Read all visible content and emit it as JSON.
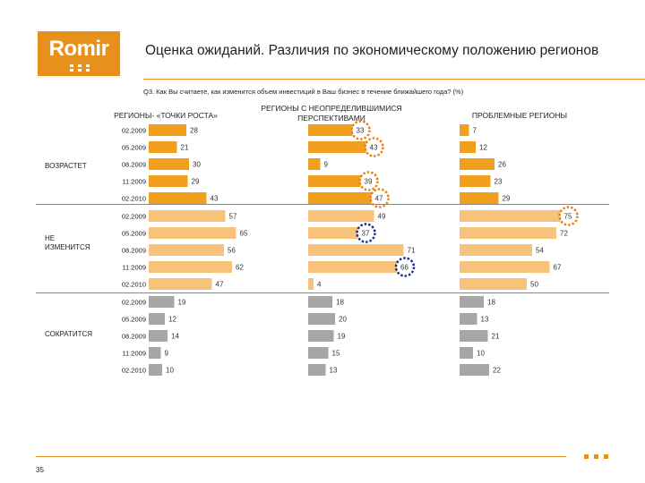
{
  "logo": {
    "text": "Romir"
  },
  "title": "Оценка ожиданий. Различия по экономическому положению регионов",
  "question": "Q3. Как Вы считаете, как изменится объем инвестиций в Ваш бизнес в течение ближайшего года? (%)",
  "page_number": "35",
  "colors": {
    "orange": "#f0a01e",
    "light_orange": "#f7c27a",
    "gray": "#a6a6a6",
    "orange_circle": "#e8801c",
    "blue_circle": "#1c2c8c"
  },
  "chart_data": {
    "type": "bar",
    "orientation": "horizontal",
    "dates": [
      "02.2009",
      "05.2009",
      "08.2009",
      "11.2009",
      "02.2010"
    ],
    "groups": [
      {
        "name": "РЕГИОНЫ- «ТОЧКИ РОСТА»",
        "values": {
          "increase": [
            28,
            21,
            30,
            29,
            43
          ],
          "unchanged": [
            57,
            65,
            56,
            62,
            47
          ],
          "decrease": [
            19,
            12,
            14,
            9,
            10
          ]
        }
      },
      {
        "name": "РЕГИОНЫ С НЕОПРЕДЕЛИВШИМИСЯ ПЕРСПЕКТИВАМИ",
        "values": {
          "increase": [
            33,
            43,
            9,
            39,
            47
          ],
          "unchanged": [
            49,
            37,
            71,
            66,
            4
          ],
          "decrease": [
            18,
            20,
            19,
            15,
            13
          ]
        }
      },
      {
        "name": "ПРОБЛЕМНЫЕ РЕГИОНЫ",
        "values": {
          "increase": [
            7,
            12,
            26,
            23,
            29
          ],
          "unchanged": [
            75,
            72,
            54,
            67,
            50
          ],
          "decrease": [
            18,
            13,
            21,
            10,
            22
          ]
        }
      }
    ],
    "categories": [
      "ВОЗРАСТЕТ",
      "НЕ ИЗМЕНИТСЯ",
      "СОКРАТИТСЯ"
    ],
    "highlights": [
      {
        "group": 1,
        "category": "increase",
        "index": 0,
        "color": "orange"
      },
      {
        "group": 1,
        "category": "increase",
        "index": 1,
        "color": "orange"
      },
      {
        "group": 1,
        "category": "increase",
        "index": 3,
        "color": "orange"
      },
      {
        "group": 1,
        "category": "increase",
        "index": 4,
        "color": "orange"
      },
      {
        "group": 1,
        "category": "unchanged",
        "index": 1,
        "color": "blue"
      },
      {
        "group": 1,
        "category": "unchanged",
        "index": 3,
        "color": "blue"
      },
      {
        "group": 2,
        "category": "unchanged",
        "index": 0,
        "color": "orange"
      }
    ]
  }
}
